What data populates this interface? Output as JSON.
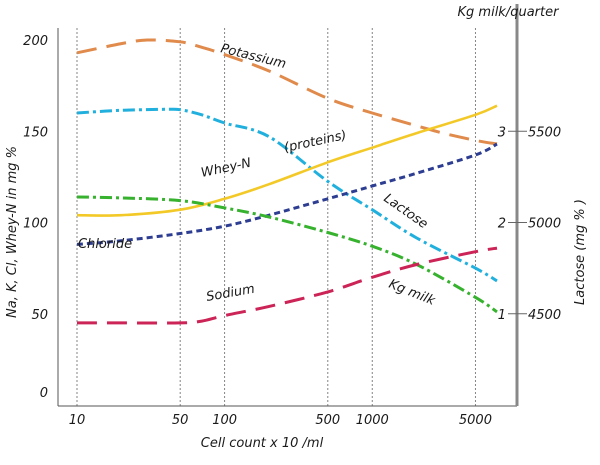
{
  "chart_data": {
    "type": "line",
    "title": "",
    "xlabel": "Cell count x 10  /ml",
    "ylabel_left": "Na, K, Cl, Whey-N in mg %",
    "ylabel_right": "Lactose  (mg % )",
    "top_right_label": "Kg milk/quarter",
    "x_scale": "log",
    "xlim": [
      10,
      7000
    ],
    "x_ticks": [
      10,
      50,
      100,
      500,
      1000,
      5000
    ],
    "x_tick_labels": [
      "10",
      "50",
      "100",
      "500",
      "1000",
      "5000"
    ],
    "left_axis": {
      "ylim": [
        0,
        210
      ],
      "ticks": [
        0,
        50,
        100,
        150,
        200
      ],
      "tick_labels": [
        "0",
        "50",
        "100",
        "150",
        "200"
      ]
    },
    "kg_axis": {
      "ticks": [
        1,
        2,
        3
      ],
      "tick_labels": [
        "1",
        "2",
        "3"
      ],
      "mapping_to_left": {
        "slope": 50,
        "intercept": 0
      }
    },
    "lactose_axis": {
      "ticks": [
        4500,
        5000,
        5500
      ],
      "tick_labels": [
        "4500",
        "5000",
        "5500"
      ],
      "mapping_to_left": {
        "slope": 0.1,
        "intercept": -400
      }
    },
    "series": [
      {
        "name": "Potassium",
        "label": "Potassium",
        "axis": "left",
        "color": "#e08a4c",
        "dash": "long",
        "points": [
          [
            10,
            193
          ],
          [
            20,
            198
          ],
          [
            30,
            200
          ],
          [
            50,
            199
          ],
          [
            70,
            196
          ],
          [
            100,
            192
          ],
          [
            200,
            183
          ],
          [
            500,
            168
          ],
          [
            1000,
            160
          ],
          [
            2000,
            153
          ],
          [
            3000,
            149
          ],
          [
            5000,
            145
          ],
          [
            7000,
            143
          ]
        ]
      },
      {
        "name": "Lactose",
        "label": "Lactose",
        "axis": "lactose",
        "color": "#21b0dd",
        "dash": "dashdot",
        "points": [
          [
            10,
            5600
          ],
          [
            20,
            5615
          ],
          [
            40,
            5620
          ],
          [
            50,
            5618
          ],
          [
            70,
            5590
          ],
          [
            100,
            5545
          ],
          [
            200,
            5470
          ],
          [
            500,
            5225
          ],
          [
            1000,
            5070
          ],
          [
            2000,
            4915
          ],
          [
            5000,
            4750
          ],
          [
            7000,
            4680
          ]
        ]
      },
      {
        "name": "Whey-N",
        "label": "Whey-N",
        "note": "(proteins)",
        "axis": "left",
        "color": "#f3c928",
        "dash": "solid",
        "points": [
          [
            10,
            104
          ],
          [
            20,
            104
          ],
          [
            50,
            107
          ],
          [
            100,
            113
          ],
          [
            200,
            121
          ],
          [
            500,
            133
          ],
          [
            1000,
            141
          ],
          [
            2000,
            149
          ],
          [
            5000,
            159
          ],
          [
            7000,
            164
          ]
        ]
      },
      {
        "name": "Chloride",
        "label": "Chloride",
        "axis": "left",
        "color": "#2d3d91",
        "dash": "short",
        "points": [
          [
            10,
            88
          ],
          [
            20,
            90
          ],
          [
            50,
            94
          ],
          [
            100,
            98
          ],
          [
            200,
            104
          ],
          [
            500,
            113
          ],
          [
            1000,
            120
          ],
          [
            2000,
            127
          ],
          [
            5000,
            137
          ],
          [
            7000,
            143
          ]
        ]
      },
      {
        "name": "Kg milk",
        "label": "Kg milk",
        "axis": "kg",
        "color": "#37b22f",
        "dash": "dashdot",
        "points": [
          [
            10,
            2.28
          ],
          [
            20,
            2.27
          ],
          [
            50,
            2.24
          ],
          [
            100,
            2.16
          ],
          [
            200,
            2.06
          ],
          [
            500,
            1.89
          ],
          [
            1000,
            1.74
          ],
          [
            2000,
            1.54
          ],
          [
            5000,
            1.18
          ],
          [
            7000,
            1.02
          ]
        ]
      },
      {
        "name": "Sodium",
        "label": "Sodium",
        "axis": "left",
        "color": "#cc2457",
        "dash": "long",
        "points": [
          [
            10,
            45
          ],
          [
            20,
            45
          ],
          [
            50,
            45
          ],
          [
            70,
            46
          ],
          [
            100,
            49
          ],
          [
            200,
            54
          ],
          [
            500,
            62
          ],
          [
            1000,
            70
          ],
          [
            2000,
            77
          ],
          [
            5000,
            84
          ],
          [
            7000,
            86
          ]
        ]
      }
    ]
  }
}
